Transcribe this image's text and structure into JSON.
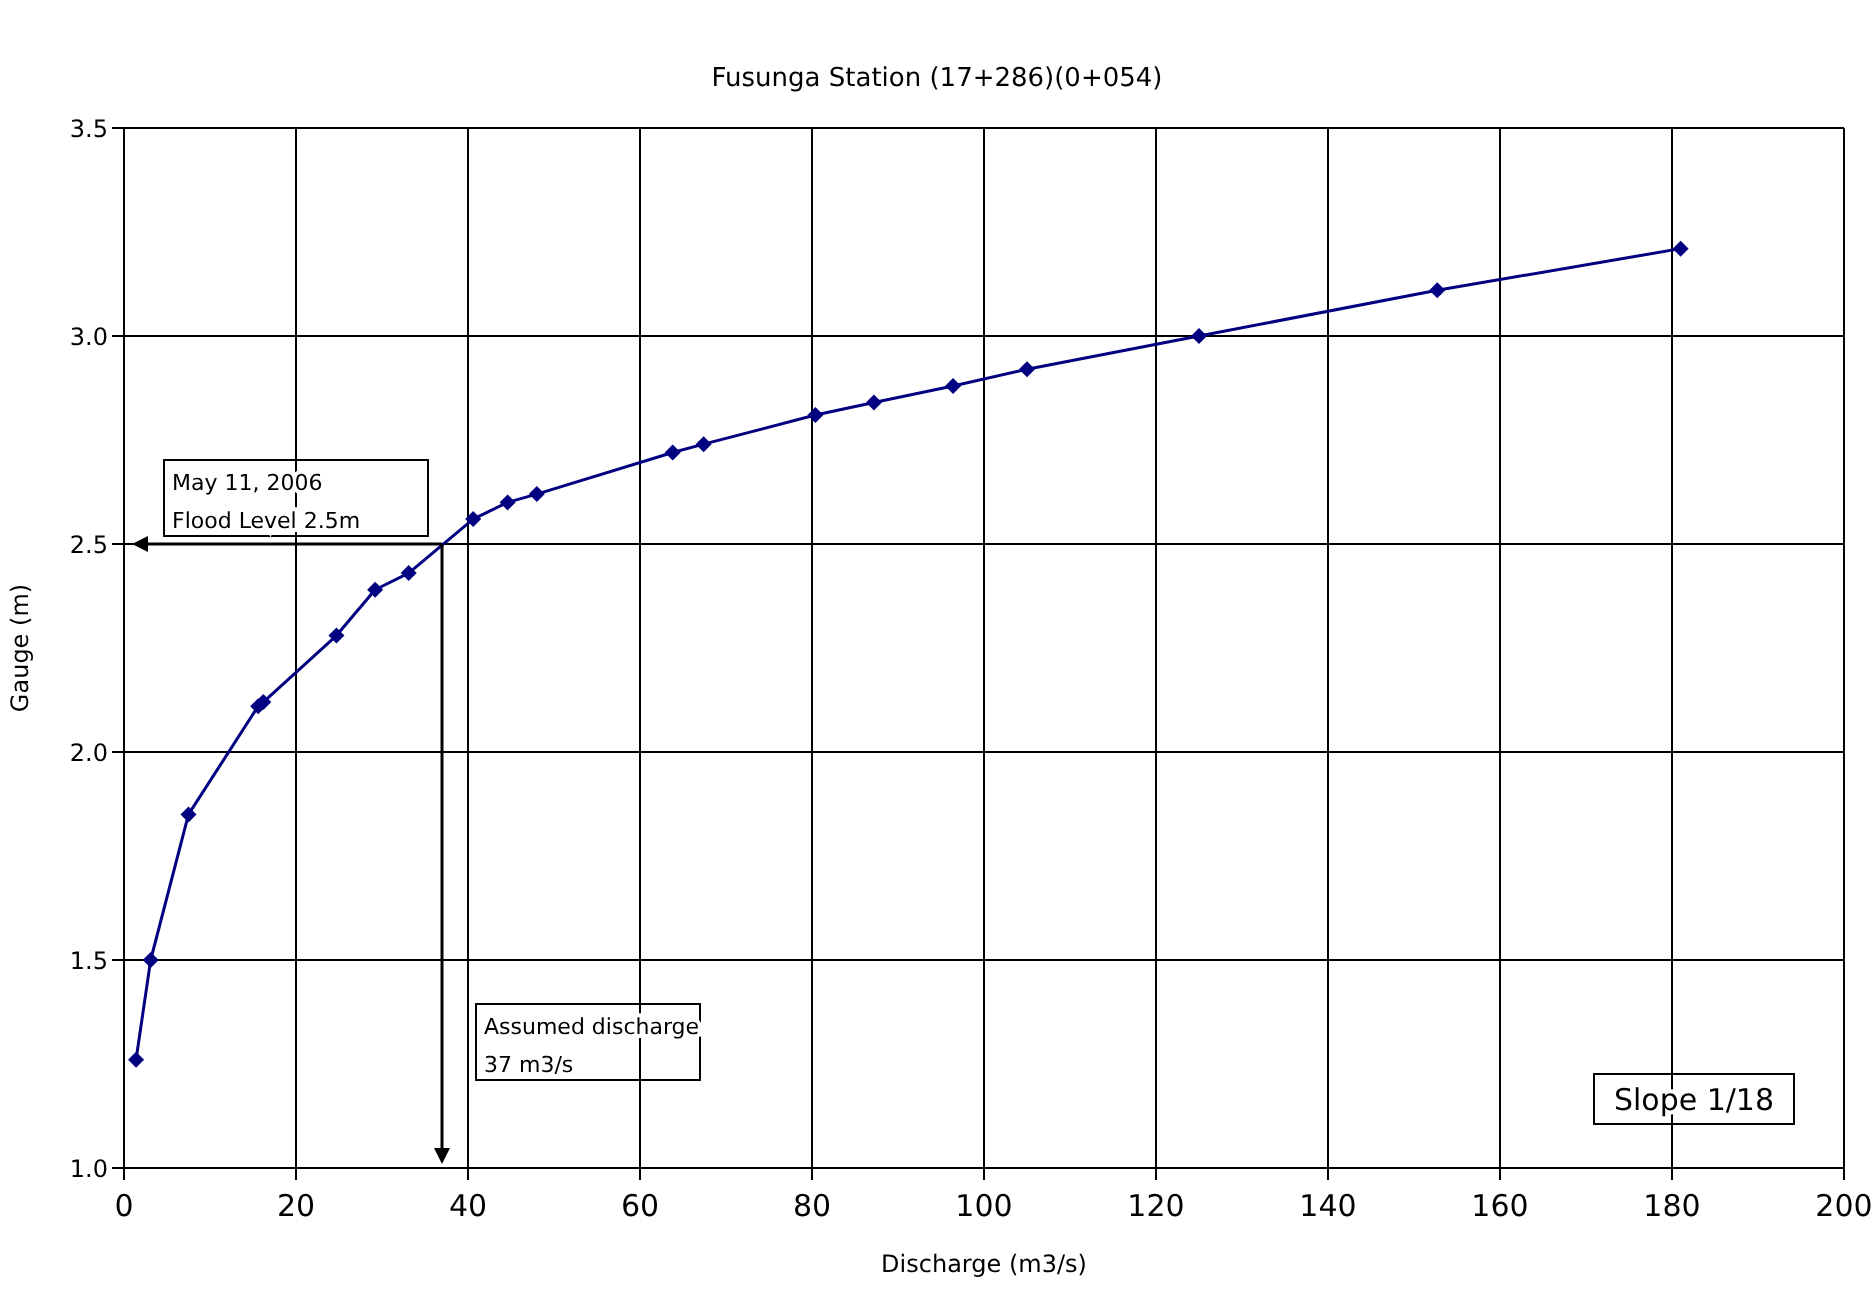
{
  "chart_data": {
    "type": "line",
    "title": "Fusunga Station (17+286)(0+054)",
    "xlabel": "Discharge (m3/s)",
    "ylabel": "Gauge (m)",
    "x": [
      1.4,
      3.1,
      7.5,
      15.6,
      16.2,
      24.7,
      29.2,
      33.1,
      40.6,
      44.6,
      48.0,
      63.8,
      67.4,
      80.4,
      87.2,
      96.4,
      105,
      125,
      152.7,
      181
    ],
    "series": [
      {
        "color": "#000080",
        "values": [
          1.26,
          1.5,
          1.85,
          2.11,
          2.12,
          2.28,
          2.39,
          2.43,
          2.56,
          2.6,
          2.62,
          2.72,
          2.74,
          2.81,
          2.84,
          2.88,
          2.92,
          3.0,
          3.11,
          3.21
        ]
      }
    ],
    "xlim": [
      0,
      200
    ],
    "xticks": [
      0,
      20,
      40,
      60,
      80,
      100,
      120,
      140,
      160,
      180,
      200
    ],
    "ylim": [
      1.0,
      3.5
    ],
    "yticks": [
      {
        "value": 1.0,
        "label": "1.0"
      },
      {
        "value": 1.5,
        "label": "1.5"
      },
      {
        "value": 2.0,
        "label": "2.0"
      },
      {
        "value": 2.5,
        "label": "2.5"
      },
      {
        "value": 3.0,
        "label": "3.0"
      },
      {
        "value": 3.5,
        "label": "3.5"
      }
    ],
    "grid": true,
    "marker": "diamond",
    "line_style": "solid",
    "annotations": [
      "May 11, 2006\nFlood Level 2.5m",
      "Assumed discharge\n37 m3/s",
      "Slope 1/18"
    ]
  }
}
